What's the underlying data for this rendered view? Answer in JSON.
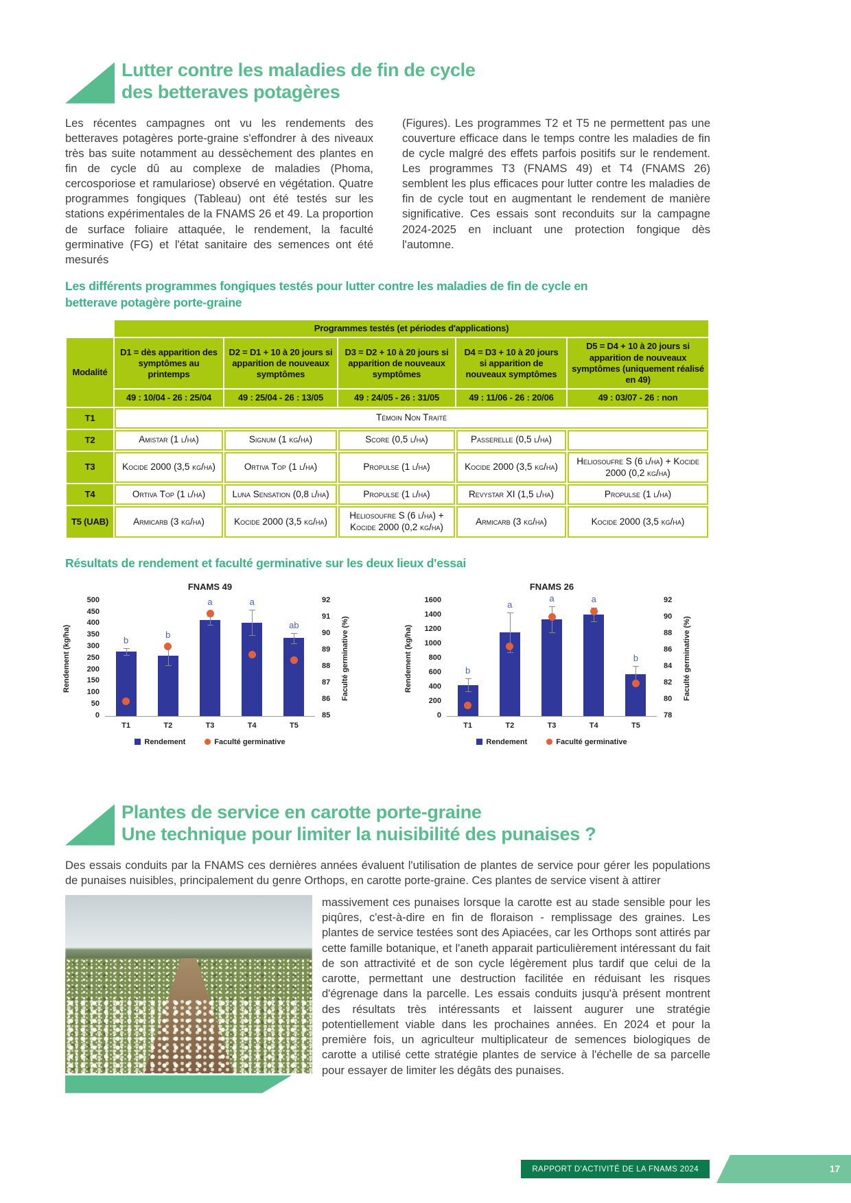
{
  "page": {
    "footer_label": "RAPPORT D'ACTIVITÉ DE LA FNAMS 2024",
    "number": "17"
  },
  "colors": {
    "heading_green": "#58bc8e",
    "caption_green": "#3ab287",
    "table_lime": "#a8c90f",
    "bar_blue": "#30399b",
    "dot_orange": "#e2613b",
    "footer_dark_green": "#0b7a4d",
    "footer_light_green": "#74c49d"
  },
  "section1": {
    "title_line1": "Lutter contre les maladies de fin de cycle",
    "title_line2": "des betteraves potagères",
    "col_left": "Les récentes campagnes ont vu les rendements des betteraves potagères porte-graine s'effondrer à des niveaux très bas suite notamment au dessèchement des plantes en fin de cycle dû au complexe de maladies (Phoma, cercosporiose et ramulariose) observé en végétation. Quatre programmes fongiques (Tableau) ont été testés sur les stations expérimentales de la FNAMS 26 et 49. La proportion de surface foliaire attaquée, le rendement, la faculté germinative (FG) et l'état sanitaire des semences ont été mesurés",
    "col_right": "(Figures). Les programmes T2 et T5 ne permettent pas une couverture efficace dans le temps contre les maladies de fin de cycle malgré des effets parfois positifs sur le rendement. Les programmes T3 (FNAMS 49) et T4 (FNAMS 26) semblent les plus efficaces pour lutter contre les maladies de fin de cycle tout en augmentant le rendement de manière significative. Ces essais sont reconduits sur la campagne 2024-2025 en incluant une protection fongique dès l'automne.",
    "table_caption": "Les différents programmes fongiques testés pour lutter contre les maladies de fin de cycle en betterave potagère porte-graine",
    "table": {
      "corner_label": "Modalité",
      "header_span": "Programmes testés (et périodes d'applications)",
      "col_headers": [
        "D1 = dès apparition des symptômes au printemps",
        "D2 = D1 + 10 à 20 jours si apparition de nouveaux symptômes",
        "D3 = D2 + 10 à 20 jours si apparition de nouveaux symptômes",
        "D4 = D3 + 10 à 20 jours si apparition de nouveaux symptômes",
        "D5 = D4 + 10 à 20 jours si apparition de nouveaux symptômes (uniquement réalisé en 49)"
      ],
      "col_dates": [
        "49 : 10/04 - 26 : 25/04",
        "49 : 25/04 - 26 : 13/05",
        "49 : 24/05 - 26 : 31/05",
        "49 : 11/06 - 26 : 20/06",
        "49 : 03/07 - 26 : non"
      ],
      "rows": [
        {
          "label": "T1",
          "span": "Témoin Non Traité"
        },
        {
          "label": "T2",
          "cells": [
            "Amistar (1 l/ha)",
            "Signum (1 kg/ha)",
            "Score (0,5 l/ha)",
            "Passerelle (0,5 l/ha)",
            ""
          ]
        },
        {
          "label": "T3",
          "cells": [
            "Kocide 2000 (3,5 kg/ha)",
            "Ortiva Top (1 l/ha)",
            "Propulse (1 l/ha)",
            "Kocide 2000 (3,5 kg/ha)",
            "Heliosoufre S (6 l/ha) + Kocide 2000 (0,2 kg/ha)"
          ]
        },
        {
          "label": "T4",
          "cells": [
            "Ortiva Top (1 l/ha)",
            "Luna Sensation (0,8 l/ha)",
            "Propulse (1 l/ha)",
            "Revystar XI (1,5 l/ha)",
            "Propulse (1 l/ha)"
          ]
        },
        {
          "label": "T5 (UAB)",
          "cells": [
            "Armicarb (3 kg/ha)",
            "Kocide 2000 (3,5 kg/ha)",
            "Heliosoufre S (6 l/ha) + Kocide 2000 (0,2 kg/ha)",
            "Armicarb (3 kg/ha)",
            "Kocide 2000 (3,5 kg/ha)"
          ]
        }
      ]
    },
    "charts_caption": "Résultats de rendement et faculté germinative sur les deux lieux d'essai"
  },
  "chart_data": [
    {
      "type": "bar",
      "title": "FNAMS 49",
      "categories": [
        "T1",
        "T2",
        "T3",
        "T4",
        "T5"
      ],
      "ylabel_left": "Rendement (kg/ha)",
      "ylabel_right": "Faculté germinative (%)",
      "ylim_left": [
        0,
        500
      ],
      "left_ticks": [
        0,
        50,
        100,
        150,
        200,
        250,
        300,
        350,
        400,
        450,
        500
      ],
      "ylim_right": [
        85,
        92
      ],
      "right_ticks": [
        85,
        86,
        87,
        88,
        89,
        90,
        91,
        92
      ],
      "series": [
        {
          "name": "Rendement",
          "type": "bar",
          "values": [
            280,
            260,
            415,
            405,
            338
          ],
          "errors": [
            15,
            40,
            20,
            55,
            22
          ],
          "color": "#30399b"
        },
        {
          "name": "Faculté germinative",
          "type": "point",
          "values": [
            85.9,
            89.2,
            91.2,
            88.7,
            88.4
          ],
          "color": "#e2613b"
        }
      ],
      "letters": [
        "b",
        "b",
        "a",
        "a",
        "ab"
      ],
      "legend_position": "bottom",
      "grid": false
    },
    {
      "type": "bar",
      "title": "FNAMS 26",
      "categories": [
        "T1",
        "T2",
        "T3",
        "T4",
        "T5"
      ],
      "ylabel_left": "Rendement (kg/ha)",
      "ylabel_right": "Faculté germinative (%)",
      "ylim_left": [
        0,
        1600
      ],
      "left_ticks": [
        0,
        200,
        400,
        600,
        800,
        1000,
        1200,
        1400,
        1600
      ],
      "ylim_right": [
        78,
        92
      ],
      "right_ticks": [
        78,
        80,
        82,
        84,
        86,
        88,
        90,
        92
      ],
      "series": [
        {
          "name": "Rendement",
          "type": "bar",
          "values": [
            430,
            1160,
            1340,
            1410,
            580
          ],
          "errors": [
            90,
            280,
            185,
            95,
            115
          ],
          "color": "#30399b"
        },
        {
          "name": "Faculté germinative",
          "type": "point",
          "values": [
            79.3,
            86.4,
            90.0,
            90.7,
            81.9
          ],
          "color": "#e2613b"
        }
      ],
      "letters": [
        "b",
        "a",
        "a",
        "a",
        "b"
      ],
      "legend_position": "bottom",
      "grid": false
    }
  ],
  "section2": {
    "title_line1": "Plantes de service en carotte porte-graine",
    "title_line2": "Une technique pour limiter la nuisibilité des punaises ?",
    "intro": "Des essais conduits par la FNAMS ces dernières années évaluent l'utilisation de plantes de service pour gérer les populations de punaises nuisibles, principalement du genre Orthops, en carotte porte-graine. Ces plantes de service visent à attirer",
    "body": "massivement ces punaises lorsque la carotte est au stade sensible pour les piqûres, c'est-à-dire en fin de floraison - remplissage des graines. Les plantes de service testées sont des Apiacées, car les Orthops sont attirés par cette famille botanique, et l'aneth apparait particulièrement intéressant du fait de son attractivité et de son cycle légèrement plus tardif que celui de la carotte, permettant une destruction facilitée en réduisant les risques d'égrenage dans la parcelle. Les essais conduits jusqu'à présent montrent des résultats très intéressants et laissent augurer une stratégie potentiellement viable dans les prochaines années. En 2024 et pour la première fois, un agriculteur multiplicateur de semences biologiques de carotte a utilisé cette stratégie plantes de service à l'échelle de sa parcelle pour essayer de limiter les dégâts des punaises."
  }
}
